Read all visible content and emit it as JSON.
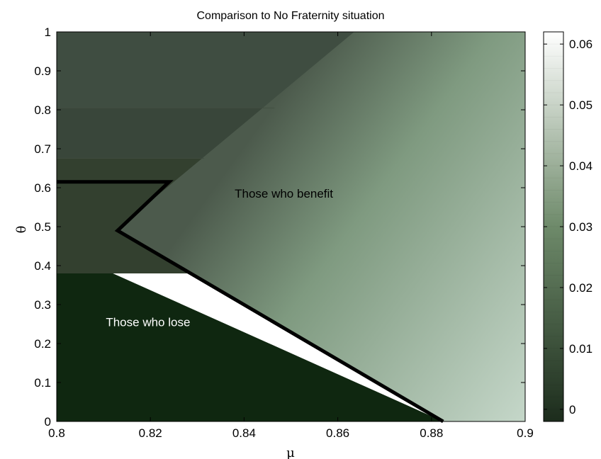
{
  "chart_data": {
    "type": "heatmap",
    "title": "Comparison to No Fraternity situation",
    "xlabel": "μ",
    "ylabel": "θ",
    "xlim": [
      0.8,
      0.9
    ],
    "ylim": [
      0,
      1
    ],
    "x_ticks": [
      "0.8",
      "0.82",
      "0.84",
      "0.86",
      "0.88",
      "0.9"
    ],
    "y_ticks": [
      "0",
      "0.1",
      "0.2",
      "0.3",
      "0.4",
      "0.5",
      "0.6",
      "0.7",
      "0.8",
      "0.9",
      "1"
    ],
    "colorbar": {
      "range": [
        -0.002,
        0.062
      ],
      "ticks": [
        "0",
        "0.01",
        "0.02",
        "0.03",
        "0.04",
        "0.05",
        "0.06"
      ],
      "colors": [
        "#1c2c1c",
        "#6e8a6a",
        "#ffffff"
      ]
    },
    "regions": [
      {
        "name": "lose",
        "value_range": [
          -0.002,
          -0.002
        ],
        "color": "#0f2710",
        "boundary": [
          [
            0.8,
            0.38
          ],
          [
            0.812,
            0.38
          ],
          [
            0.8825,
            0.0
          ],
          [
            0.8,
            0.0
          ]
        ]
      },
      {
        "name": "benefit",
        "value_range": [
          0.005,
          0.053
        ],
        "color_low": "#4c5a4c",
        "color_high": "#c4d6c8",
        "boundary": [
          [
            0.8125,
            0.49
          ],
          [
            0.8635,
            1.0
          ],
          [
            0.9,
            1.0
          ],
          [
            0.9,
            0.0
          ],
          [
            0.8825,
            0.0
          ]
        ]
      },
      {
        "name": "upper-left plateau",
        "levels": [
          {
            "theta_range": [
              0.38,
              0.675
            ],
            "color": "#33402f"
          },
          {
            "theta_range": [
              0.675,
              0.805
            ],
            "color": "#39463a"
          },
          {
            "theta_range": [
              0.805,
              1.0
            ],
            "color": "#3f4d41"
          }
        ]
      }
    ],
    "zero_contour": [
      [
        0.8,
        0.615
      ],
      [
        0.824,
        0.615
      ],
      [
        0.813,
        0.49
      ],
      [
        0.8825,
        0.0
      ]
    ],
    "annotations": [
      {
        "text": "Those who benefit",
        "mu": 0.8485,
        "theta": 0.575,
        "color": "#000000"
      },
      {
        "text": "Those who lose",
        "mu": 0.8195,
        "theta": 0.245,
        "color": "#ffffff"
      }
    ]
  }
}
